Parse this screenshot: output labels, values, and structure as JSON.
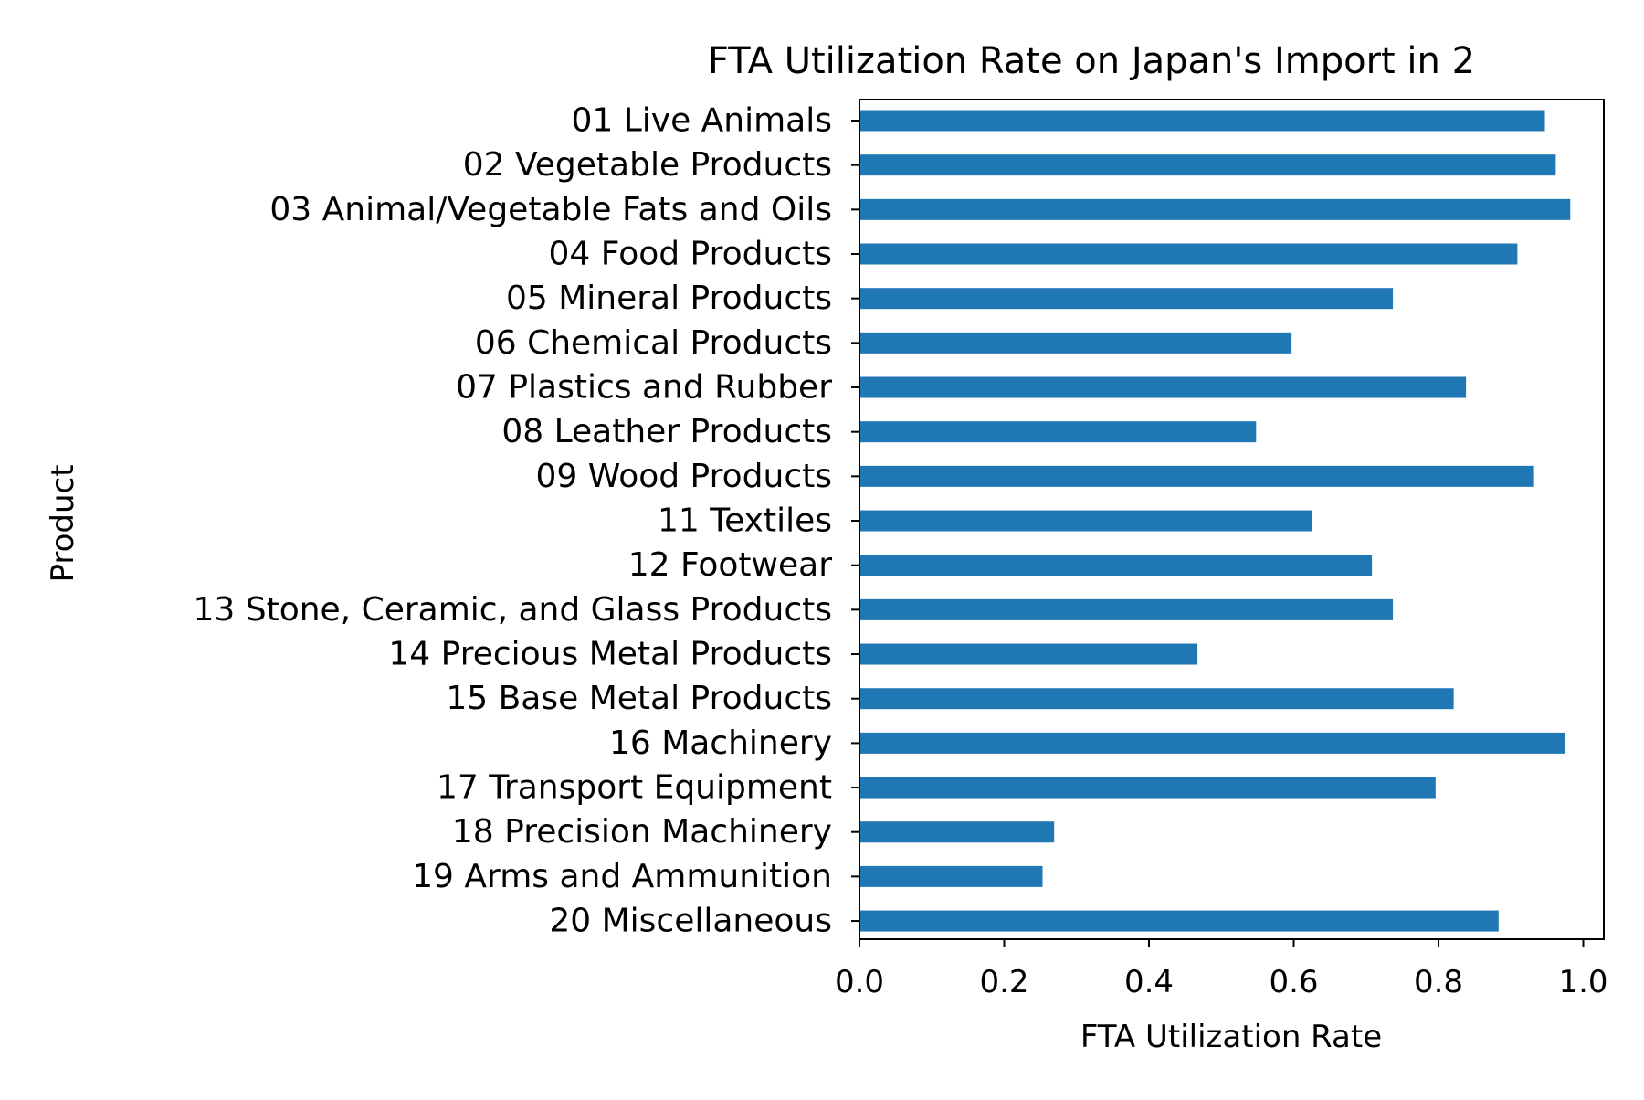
{
  "chart_data": {
    "type": "bar",
    "orientation": "horizontal",
    "title": "FTA Utilization Rate on Japan's Import in 2",
    "xlabel": "FTA Utilization Rate",
    "ylabel": "Product",
    "xlim": [
      0,
      1.03
    ],
    "xticks": [
      "0.0",
      "0.2",
      "0.4",
      "0.6",
      "0.8",
      "1.0"
    ],
    "grid": false,
    "bar_color": "#1f77b4",
    "categories": [
      "01 Live Animals",
      "02 Vegetable Products",
      "03 Animal/Vegetable Fats and Oils",
      "04 Food Products",
      "05 Mineral Products",
      "06 Chemical Products",
      "07 Plastics and Rubber",
      "08 Leather Products",
      "09 Wood Products",
      "11 Textiles",
      "12 Footwear",
      "13 Stone, Ceramic, and Glass Products",
      "14 Precious Metal Products",
      "15 Base Metal Products",
      "16 Machinery",
      "17 Transport Equipment",
      "18 Precision Machinery",
      "19 Arms and Ammunition",
      "20 Miscellaneous"
    ],
    "values": [
      0.947,
      0.962,
      0.982,
      0.909,
      0.737,
      0.597,
      0.838,
      0.548,
      0.932,
      0.625,
      0.708,
      0.737,
      0.467,
      0.821,
      0.975,
      0.796,
      0.269,
      0.253,
      0.883
    ]
  }
}
